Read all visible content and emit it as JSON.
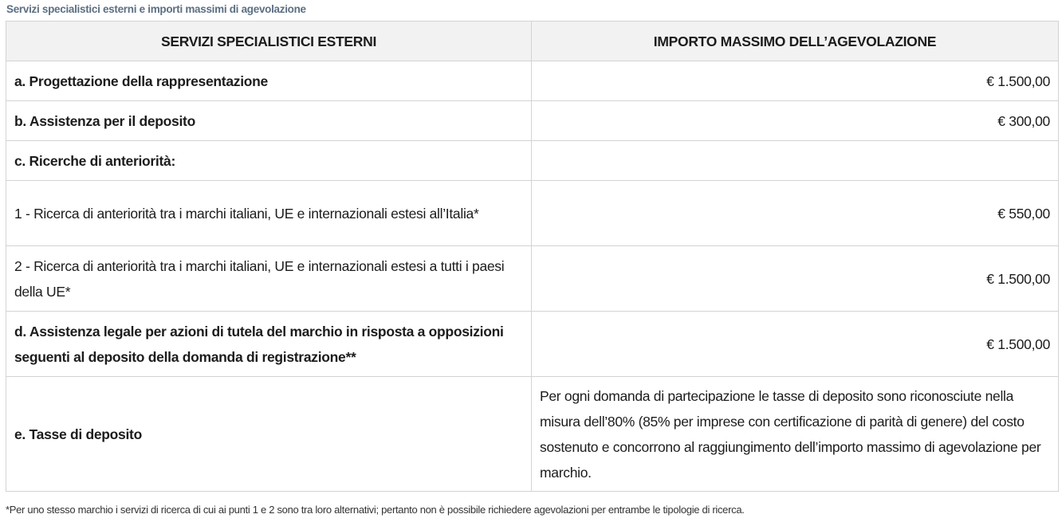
{
  "caption": "Servizi specialistici esterni e importi massimi di agevolazione",
  "table": {
    "headers": [
      "SERVIZI SPECIALISTICI ESTERNI",
      "IMPORTO MASSIMO DELL’AGEVOLAZIONE"
    ],
    "rows": [
      {
        "service": "a. Progettazione della rappresentazione",
        "amount": "€ 1.500,00"
      },
      {
        "service": "b. Assistenza per il deposito",
        "amount": "€ 300,00"
      },
      {
        "service": "c. Ricerche di anteriorità:",
        "amount": ""
      },
      {
        "service": "1 - Ricerca di anteriorità tra i marchi italiani, UE e internazionali estesi all’Italia*",
        "amount": "€ 550,00"
      },
      {
        "service": "2 - Ricerca di anteriorità tra i marchi italiani, UE e internazionali estesi a tutti i paesi della UE*",
        "amount": "€ 1.500,00"
      },
      {
        "service": "d. Assistenza legale per azioni di tutela del marchio in risposta a opposizioni seguenti al deposito della domanda di registrazione**",
        "amount": "€ 1.500,00"
      },
      {
        "service": "e. Tasse di deposito",
        "amount": "Per ogni domanda di partecipazione le tasse di deposito sono riconosciute nella misura dell’80% (85% per imprese con certificazione di parità di genere) del costo sostenuto e concorrono al raggiungimento dell’importo massimo di agevolazione per marchio."
      }
    ]
  },
  "footnote": "*Per uno stesso marchio i servizi di ricerca di cui ai punti 1 e 2 sono tra loro alternativi; pertanto non è possibile richiedere agevolazioni per entrambe le tipologie di ricerca."
}
